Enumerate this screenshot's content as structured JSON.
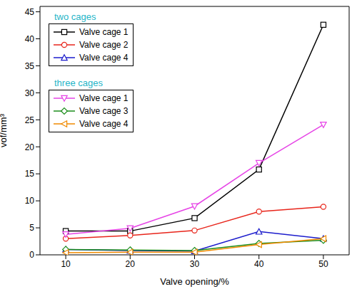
{
  "chart_data": {
    "type": "line",
    "x_label": "Valve opening/%",
    "y_label": "vof/mm³",
    "x": [
      10,
      20,
      30,
      40,
      50
    ],
    "xlim": [
      6,
      54
    ],
    "xticks": [
      10,
      20,
      30,
      40,
      50
    ],
    "ylim": [
      0,
      46
    ],
    "yticks": [
      0,
      5,
      10,
      15,
      20,
      25,
      30,
      35,
      40,
      45
    ],
    "grid": false,
    "legend": "top-left",
    "series": [
      {
        "name": "Valve cage 1",
        "group": "two cages",
        "color": "#000000",
        "marker": "square",
        "values": [
          4.4,
          4.4,
          6.8,
          15.8,
          42.6
        ]
      },
      {
        "name": "Valve cage 2",
        "group": "two cages",
        "color": "#e8251b",
        "marker": "circle",
        "values": [
          3.0,
          3.6,
          4.5,
          8.0,
          8.9
        ]
      },
      {
        "name": "Valve cage 4",
        "group": "two cages",
        "color": "#1c1ccc",
        "marker": "triangle",
        "values": [
          1.0,
          0.8,
          0.7,
          4.3,
          3.0
        ]
      },
      {
        "name": "Valve cage 1",
        "group": "three cages",
        "color": "#e644e6",
        "marker": "triangle-down",
        "values": [
          3.8,
          4.9,
          9.0,
          17.0,
          24.1
        ]
      },
      {
        "name": "Valve cage 3",
        "group": "three cages",
        "color": "#1a8c1a",
        "marker": "diamond",
        "values": [
          1.0,
          0.9,
          0.8,
          2.1,
          2.7
        ]
      },
      {
        "name": "Valve cage 4",
        "group": "three cages",
        "color": "#f08a00",
        "marker": "triangle-left",
        "values": [
          0.4,
          0.5,
          0.5,
          1.9,
          3.0
        ]
      }
    ]
  }
}
